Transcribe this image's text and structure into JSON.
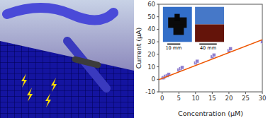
{
  "chart_data": {
    "type": "scatter",
    "xlabel": "Concentration (μM)",
    "ylabel": "Current (μA)",
    "xlim": [
      -1,
      30
    ],
    "ylim": [
      -10,
      60
    ],
    "xticks": [
      0,
      5,
      10,
      15,
      20,
      25,
      30
    ],
    "yticks": [
      -10,
      0,
      10,
      20,
      30,
      40,
      50,
      60
    ],
    "grid": false,
    "series": [
      {
        "type": "scatter",
        "color": "#8877cc",
        "marker": "square",
        "x": [
          0.2,
          0.5,
          1.0,
          1.5,
          2.0,
          5.0,
          5.5,
          6.0,
          10.0,
          10.5,
          15.0,
          15.5,
          20.0,
          20.5,
          30.0
        ],
        "values": [
          1.0,
          1.5,
          2.5,
          3.0,
          4.0,
          7.5,
          8.5,
          9.5,
          13.0,
          14.5,
          18.0,
          19.5,
          23.0,
          24.5,
          30.0
        ],
        "errors": [
          0.7,
          0.7,
          0.7,
          0.7,
          0.7,
          0.7,
          0.7,
          0.7,
          0.7,
          0.7,
          0.7,
          0.7,
          0.7,
          0.7,
          0.7
        ]
      },
      {
        "type": "line",
        "color": "#ee5500",
        "line_style": "solid",
        "x": [
          -1,
          30
        ],
        "values": [
          -0.23,
          31.7
        ]
      }
    ],
    "annotations": [
      "10 mm",
      "40 mm"
    ]
  }
}
